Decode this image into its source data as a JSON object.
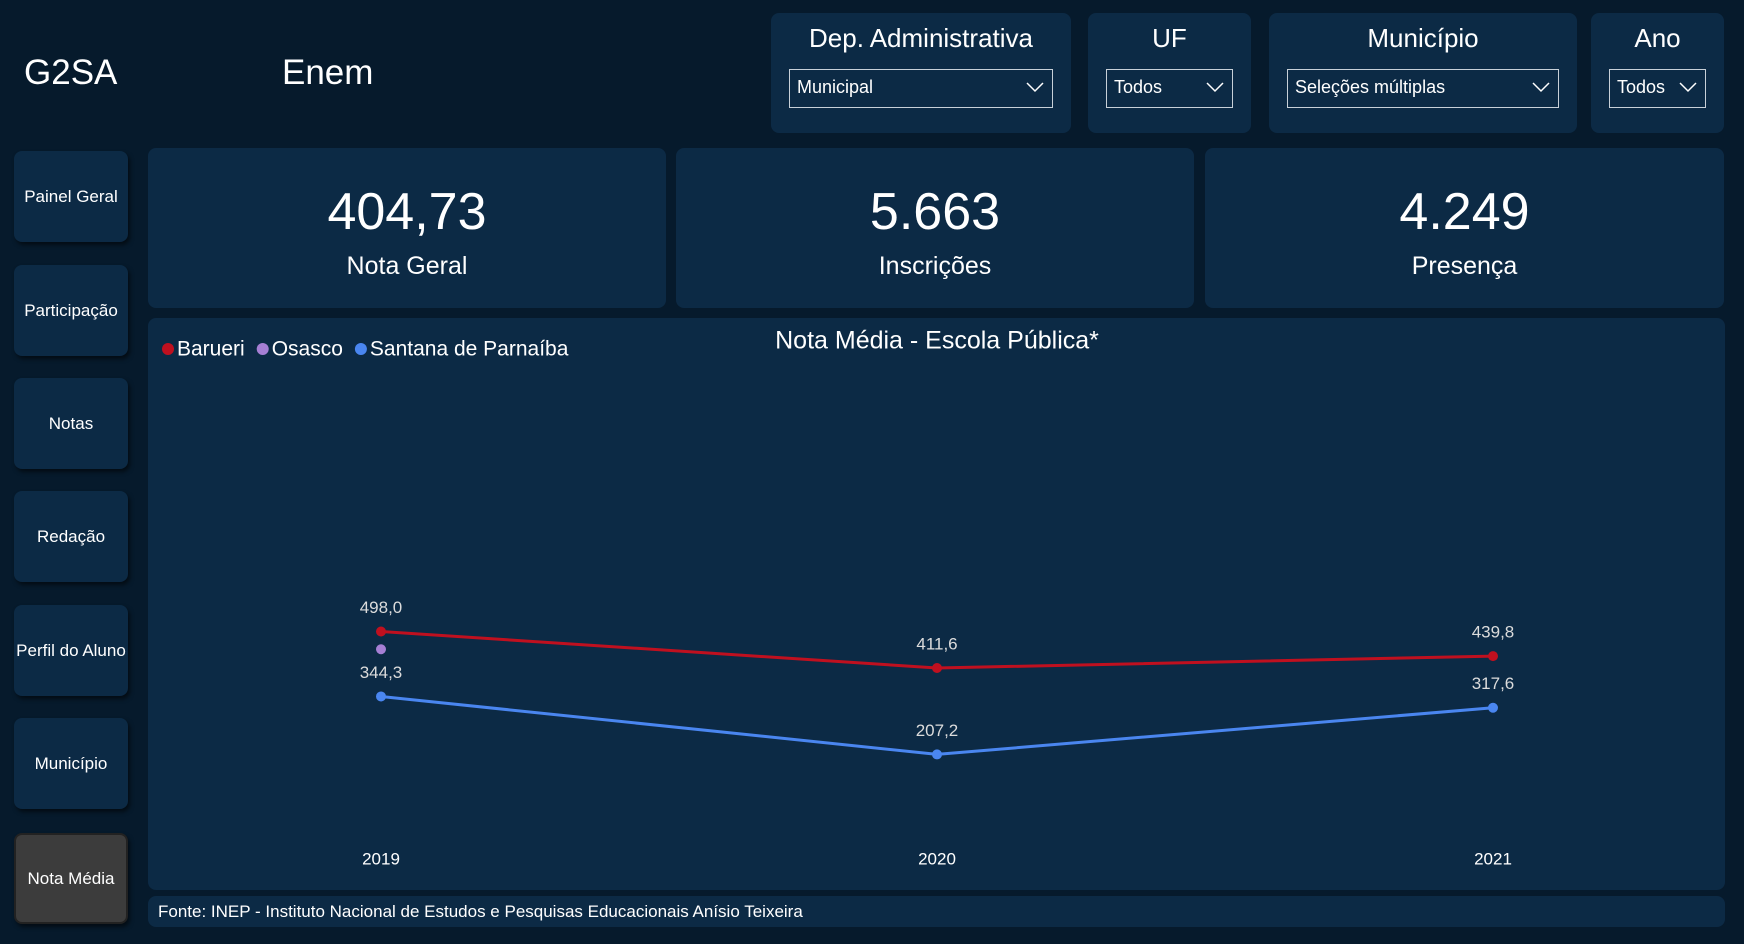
{
  "header": {
    "logo": "G2SA",
    "title": "Enem"
  },
  "filters": [
    {
      "label": "Dep. Administrativa",
      "value": "Municipal"
    },
    {
      "label": "UF",
      "value": "Todos"
    },
    {
      "label": "Município",
      "value": "Seleções múltiplas"
    },
    {
      "label": "Ano",
      "value": "Todos"
    }
  ],
  "nav": [
    "Painel Geral",
    "Participação",
    "Notas",
    "Redação",
    "Perfil do Aluno",
    "Município",
    "Nota Média"
  ],
  "kpis": [
    {
      "value": "404,73",
      "label": "Nota Geral"
    },
    {
      "value": "5.663",
      "label": "Inscrições"
    },
    {
      "value": "4.249",
      "label": "Presença"
    }
  ],
  "chart_data": {
    "type": "line",
    "title": "Nota Média - Escola Pública*",
    "categories": [
      "2019",
      "2020",
      "2021"
    ],
    "series": [
      {
        "name": "Barueri",
        "color": "#c0101f",
        "values": [
          498.0,
          411.6,
          439.8
        ],
        "value_labels": [
          "498,0",
          "411,6",
          "439,8"
        ]
      },
      {
        "name": "Osasco",
        "color": "#a67fd4",
        "values": [
          456,
          null,
          null
        ]
      },
      {
        "name": "Santana de Parnaíba",
        "color": "#4a86f0",
        "values": [
          344.3,
          207.2,
          317.6
        ],
        "value_labels": [
          "344,3",
          "207,2",
          "317,6"
        ]
      }
    ]
  },
  "footer": "Fonte: INEP - Instituto Nacional de Estudos e Pesquisas Educacionais Anísio Teixeira"
}
